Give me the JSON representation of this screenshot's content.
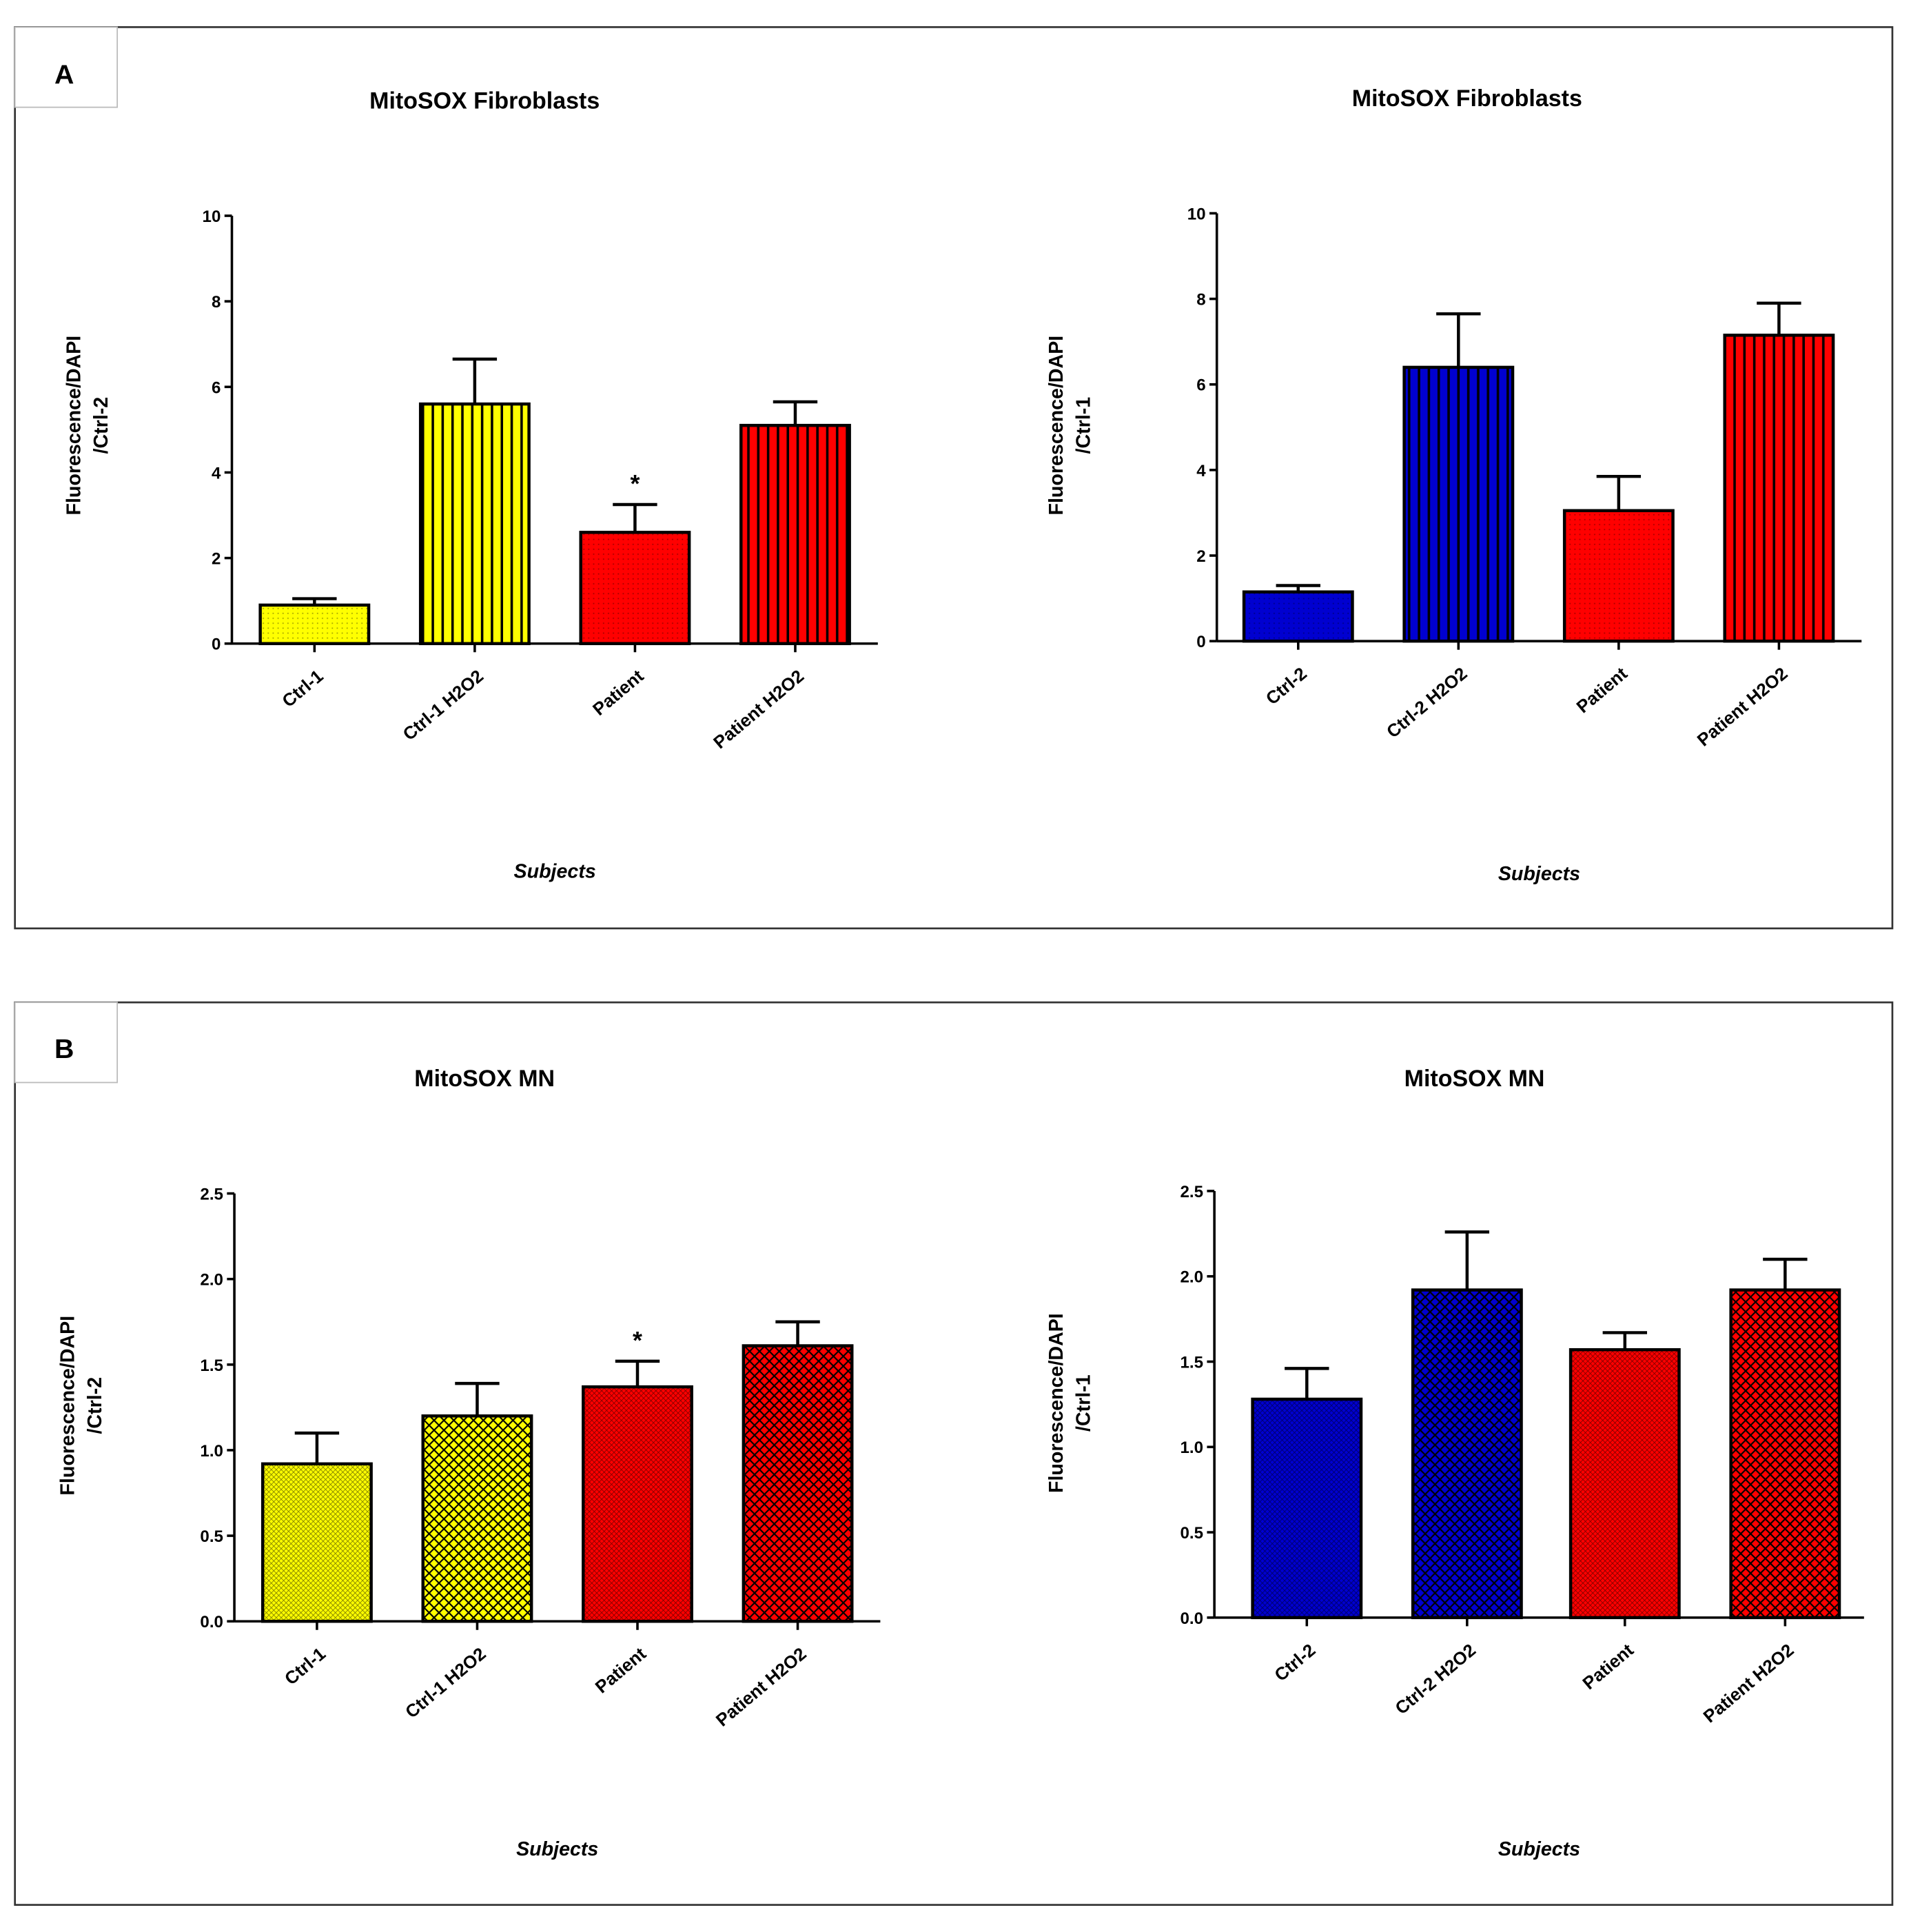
{
  "panels": [
    {
      "label": "A"
    },
    {
      "label": "B"
    }
  ],
  "colors": {
    "yellow": "#ffff00",
    "blue": "#0000d0",
    "red": "#ff0000"
  },
  "chart_data": [
    {
      "type": "bar",
      "panel": "A",
      "title": "MitoSOX Fibroblasts",
      "xlabel": "Subjects",
      "ylabel": [
        "Fluorescence/DAPI",
        "/Ctrl-2"
      ],
      "ylim": [
        0,
        10
      ],
      "yticks": [
        "0",
        "2",
        "4",
        "6",
        "8",
        "10"
      ],
      "ytick_values": [
        0,
        2,
        4,
        6,
        8,
        10
      ],
      "categories": [
        "Ctrl-1",
        "Ctrl-1 H2O2",
        "Patient",
        "Patient H2O2"
      ],
      "values": [
        0.9,
        5.6,
        2.6,
        5.1
      ],
      "errors": [
        0.15,
        1.05,
        0.65,
        0.55
      ],
      "colors": [
        "yellow",
        "yellow",
        "red",
        "red"
      ],
      "patterns": [
        "dots",
        "stripes",
        "dots",
        "stripes"
      ],
      "annotations": [
        "",
        "",
        "*",
        ""
      ]
    },
    {
      "type": "bar",
      "panel": "A",
      "title": "MitoSOX Fibroblasts",
      "xlabel": "Subjects",
      "ylabel": [
        "Fluorescence/DAPI",
        "/Ctrl-1"
      ],
      "ylim": [
        0,
        10
      ],
      "yticks": [
        "0",
        "2",
        "4",
        "6",
        "8",
        "10"
      ],
      "ytick_values": [
        0,
        2,
        4,
        6,
        8,
        10
      ],
      "categories": [
        "Ctrl-2",
        "Ctrl-2 H2O2",
        "Patient",
        "Patient H2O2"
      ],
      "values": [
        1.15,
        6.4,
        3.05,
        7.15
      ],
      "errors": [
        0.15,
        1.25,
        0.8,
        0.75
      ],
      "colors": [
        "blue",
        "blue",
        "red",
        "red"
      ],
      "patterns": [
        "dots",
        "stripes",
        "dots",
        "stripes"
      ],
      "annotations": [
        "",
        "",
        "",
        ""
      ]
    },
    {
      "type": "bar",
      "panel": "B",
      "title": "MitoSOX MN",
      "xlabel": "Subjects",
      "ylabel": [
        "Fluorescence/DAPI",
        "/Ctrl-2"
      ],
      "ylim": [
        0,
        2.5
      ],
      "yticks": [
        "0.0",
        "0.5",
        "1.0",
        "1.5",
        "2.0",
        "2.5"
      ],
      "ytick_values": [
        0,
        0.5,
        1,
        1.5,
        2,
        2.5
      ],
      "categories": [
        "Ctrl-1",
        "Ctrl-1 H2O2",
        "Patient",
        "Patient H2O2"
      ],
      "values": [
        0.92,
        1.2,
        1.37,
        1.61
      ],
      "errors": [
        0.18,
        0.19,
        0.15,
        0.14
      ],
      "colors": [
        "yellow",
        "yellow",
        "red",
        "red"
      ],
      "patterns": [
        "fine",
        "hatch",
        "fine",
        "hatch"
      ],
      "annotations": [
        "",
        "",
        "*",
        ""
      ]
    },
    {
      "type": "bar",
      "panel": "B",
      "title": "MitoSOX MN",
      "xlabel": "Subjects",
      "ylabel": [
        "Fluorescence/DAPI",
        "/Ctrl-1"
      ],
      "ylim": [
        0,
        2.5
      ],
      "yticks": [
        "0.0",
        "0.5",
        "1.0",
        "1.5",
        "2.0",
        "2.5"
      ],
      "ytick_values": [
        0,
        0.5,
        1,
        1.5,
        2,
        2.5
      ],
      "categories": [
        "Ctrl-2",
        "Ctrl-2 H2O2",
        "Patient",
        "Patient H2O2"
      ],
      "values": [
        1.28,
        1.92,
        1.57,
        1.92
      ],
      "errors": [
        0.18,
        0.34,
        0.1,
        0.18
      ],
      "colors": [
        "blue",
        "blue",
        "red",
        "red"
      ],
      "patterns": [
        "fine",
        "hatch",
        "fine",
        "hatch"
      ],
      "annotations": [
        "",
        "",
        "",
        ""
      ]
    }
  ]
}
